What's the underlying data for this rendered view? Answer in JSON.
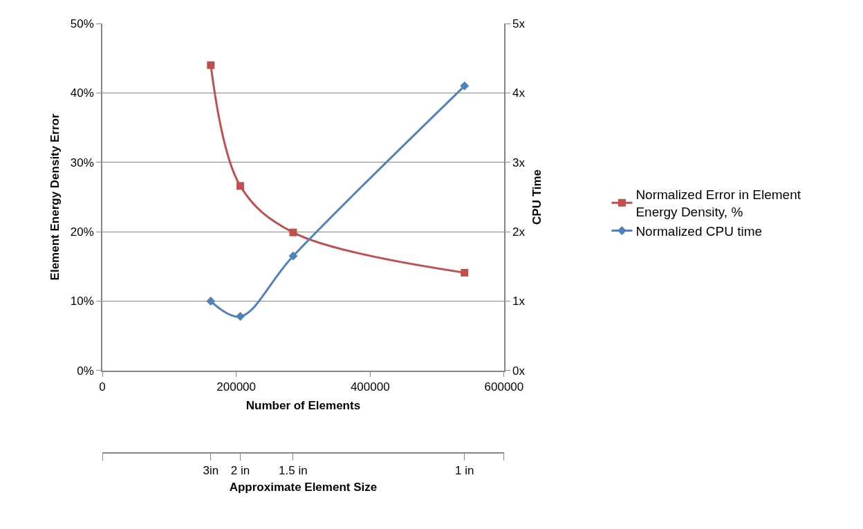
{
  "chart_data": {
    "type": "line",
    "xlabel": "Number of Elements",
    "ylabel": "Element Energy Density Error",
    "y2label": "CPU Time",
    "x2label": "Approximate Element Size",
    "xlim": [
      0,
      600000
    ],
    "xticks": [
      0,
      200000,
      400000,
      600000
    ],
    "annotations": [
      {
        "text": "3in",
        "x": 162000
      },
      {
        "text": "2 in",
        "x": 206000
      },
      {
        "text": "1.5 in",
        "x": 285000
      },
      {
        "text": "1 in",
        "x": 541000
      }
    ],
    "ylim": [
      0,
      50
    ],
    "yticks": [
      {
        "value": 0,
        "label": "0%"
      },
      {
        "value": 10,
        "label": "10%"
      },
      {
        "value": 20,
        "label": "20%"
      },
      {
        "value": 30,
        "label": "30%"
      },
      {
        "value": 40,
        "label": "40%"
      },
      {
        "value": 50,
        "label": "50%"
      }
    ],
    "y2lim": [
      0,
      5
    ],
    "y2ticks": [
      {
        "value": 0,
        "label": "0x"
      },
      {
        "value": 1,
        "label": "1x"
      },
      {
        "value": 2,
        "label": "2x"
      },
      {
        "value": 3,
        "label": "3x"
      },
      {
        "value": 4,
        "label": "4x"
      },
      {
        "value": 5,
        "label": "5x"
      }
    ],
    "grid": "y",
    "legend": "right",
    "series": [
      {
        "name": "Normalized Error in Element Energy Density, %",
        "color": "#c0504d",
        "marker": "square",
        "x": [
          162000,
          206000,
          285000,
          541000
        ],
        "values": [
          44.0,
          26.6,
          19.9,
          14.1
        ]
      },
      {
        "name": "Normalized CPU time",
        "color": "#4f81bd",
        "marker": "diamond",
        "axis": "y2",
        "x": [
          162000,
          206000,
          285000,
          541000
        ],
        "values": [
          1.0,
          0.78,
          1.65,
          4.1
        ]
      }
    ]
  }
}
